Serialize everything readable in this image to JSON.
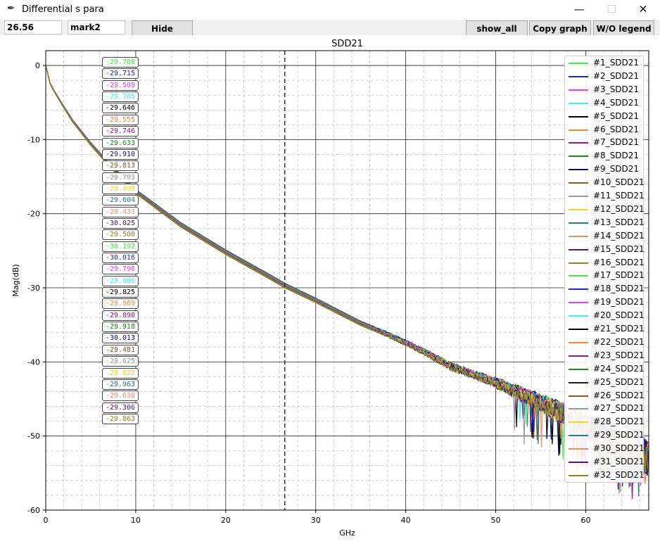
{
  "window": {
    "title": "Differential s para",
    "icon": "feather-icon",
    "minimize": "—",
    "maximize": "☐",
    "close": "✕"
  },
  "toolbar": {
    "entry1_value": "26.56",
    "entry2_value": "mark2",
    "hide_label": "Hide",
    "show_all_label": "show_all",
    "copy_graph_label": "Copy graph",
    "wo_legend_label": "W/O legend"
  },
  "chart_data": {
    "type": "line",
    "title": "SDD21",
    "xlabel": "GHz",
    "ylabel": "Mag(dB)",
    "xlim": [
      0,
      67
    ],
    "ylim": [
      -60,
      2
    ],
    "xticks": [
      0,
      10,
      20,
      30,
      40,
      50,
      60
    ],
    "yticks": [
      0,
      -10,
      -20,
      -30,
      -40,
      -50,
      -60
    ],
    "grid": true,
    "marker_x": 26.56,
    "legend_position": "upper right",
    "series": [
      {
        "name": "#1_SDD21",
        "color": "#3cf23c",
        "marker_value": "-29.788"
      },
      {
        "name": "#2_SDD21",
        "color": "#1c2ab0",
        "marker_value": "-29.715"
      },
      {
        "name": "#3_SDD21",
        "color": "#f03cf0",
        "marker_value": "-29.509"
      },
      {
        "name": "#4_SDD21",
        "color": "#3cf0f0",
        "marker_value": "-29.785"
      },
      {
        "name": "#5_SDD21",
        "color": "#000000",
        "marker_value": "-29.646"
      },
      {
        "name": "#6_SDD21",
        "color": "#f08a3c",
        "marker_value": "-29.555"
      },
      {
        "name": "#7_SDD21",
        "color": "#8a1c8a",
        "marker_value": "-29.746"
      },
      {
        "name": "#8_SDD21",
        "color": "#1c8a1c",
        "marker_value": "-29.633"
      },
      {
        "name": "#9_SDD21",
        "color": "#101078",
        "marker_value": "-29.910"
      },
      {
        "name": "#10_SDD21",
        "color": "#8a5a2a",
        "marker_value": "-29.813"
      },
      {
        "name": "#11_SDD21",
        "color": "#9a9a9a",
        "marker_value": "-29.703"
      },
      {
        "name": "#12_SDD21",
        "color": "#f0d81c",
        "marker_value": "-29.490"
      },
      {
        "name": "#13_SDD21",
        "color": "#2a7a8a",
        "marker_value": "-29.604"
      },
      {
        "name": "#14_SDD21",
        "color": "#f0906a",
        "marker_value": "-29.431"
      },
      {
        "name": "#15_SDD21",
        "color": "#4a1a6a",
        "marker_value": "-30.025"
      },
      {
        "name": "#16_SDD21",
        "color": "#8a8a1c",
        "marker_value": "-29.500"
      },
      {
        "name": "#17_SDD21",
        "color": "#3cf23c",
        "marker_value": "-30.192"
      },
      {
        "name": "#18_SDD21",
        "color": "#1c2af0",
        "marker_value": "-30.016"
      },
      {
        "name": "#19_SDD21",
        "color": "#f03cf0",
        "marker_value": "-29.796"
      },
      {
        "name": "#20_SDD21",
        "color": "#3cf0f0",
        "marker_value": "-29.986"
      },
      {
        "name": "#21_SDD21",
        "color": "#000000",
        "marker_value": "-29.825"
      },
      {
        "name": "#22_SDD21",
        "color": "#f08a3c",
        "marker_value": "-29.969"
      },
      {
        "name": "#23_SDD21",
        "color": "#8a1c8a",
        "marker_value": "-29.890"
      },
      {
        "name": "#24_SDD21",
        "color": "#1c8a1c",
        "marker_value": "-29.918"
      },
      {
        "name": "#25_SDD21",
        "color": "#101078",
        "marker_value": "-30.013"
      },
      {
        "name": "#26_SDD21",
        "color": "#8a5a2a",
        "marker_value": "-29.481"
      },
      {
        "name": "#27_SDD21",
        "color": "#9a9a9a",
        "marker_value": "-29.625"
      },
      {
        "name": "#28_SDD21",
        "color": "#f0d81c",
        "marker_value": "-29.822"
      },
      {
        "name": "#29_SDD21",
        "color": "#2a7a8a",
        "marker_value": "-29.963"
      },
      {
        "name": "#30_SDD21",
        "color": "#f0906a",
        "marker_value": "-29.638"
      },
      {
        "name": "#31_SDD21",
        "color": "#4a1a6a",
        "marker_value": "-29.306"
      },
      {
        "name": "#32_SDD21",
        "color": "#8a8a1c",
        "marker_value": "-29.863"
      }
    ],
    "curve_points": [
      [
        0,
        0
      ],
      [
        0.5,
        -2.5
      ],
      [
        1,
        -3.6
      ],
      [
        2,
        -5.6
      ],
      [
        3,
        -7.5
      ],
      [
        5,
        -10.6
      ],
      [
        7,
        -13.3
      ],
      [
        10,
        -17.0
      ],
      [
        15,
        -21.5
      ],
      [
        20,
        -25.2
      ],
      [
        25,
        -28.6
      ],
      [
        26.56,
        -29.7
      ],
      [
        30,
        -31.7
      ],
      [
        35,
        -34.8
      ],
      [
        38,
        -36.3
      ],
      [
        42,
        -38.6
      ],
      [
        45,
        -40.6
      ],
      [
        50,
        -42.8
      ],
      [
        55,
        -45.5
      ],
      [
        60,
        -48.5
      ],
      [
        63,
        -50.5
      ],
      [
        67,
        -53.0
      ]
    ]
  }
}
